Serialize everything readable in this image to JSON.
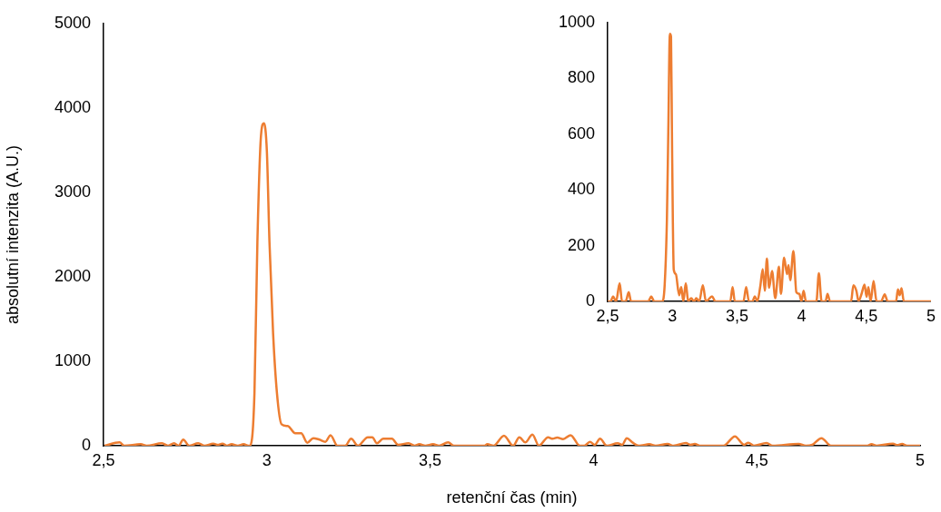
{
  "chart_data": [
    {
      "type": "line",
      "xlabel": "retenční čas (min)",
      "ylabel": "absolutní intenzita (A.U.)",
      "color": "#ed7d31",
      "marker": "none",
      "grid": false,
      "legend": false,
      "xlim": [
        2.5,
        5
      ],
      "xticks": [
        {
          "value": 2.5,
          "label": "2,5"
        },
        3,
        {
          "value": 3.5,
          "label": "3,5"
        },
        4,
        {
          "value": 4.5,
          "label": "4,5"
        },
        5
      ],
      "ylim": [
        0,
        5000
      ],
      "yticks": [
        0,
        1000,
        2000,
        3000,
        4000,
        5000
      ],
      "x": [
        2.503,
        2.549,
        2.563,
        2.614,
        2.632,
        2.679,
        2.697,
        2.716,
        2.73,
        2.744,
        2.762,
        2.79,
        2.809,
        2.836,
        2.85,
        2.864,
        2.878,
        2.892,
        2.911,
        2.929,
        2.943,
        2.948,
        2.962,
        2.971,
        2.982,
        2.991,
        3.0,
        3.008,
        3.019,
        3.031,
        3.045,
        3.064,
        3.087,
        3.105,
        3.124,
        3.142,
        3.161,
        3.179,
        3.195,
        3.216,
        3.24,
        3.258,
        3.279,
        3.309,
        3.323,
        3.337,
        3.356,
        3.383,
        3.402,
        3.434,
        3.452,
        3.467,
        3.485,
        3.509,
        3.527,
        3.555,
        3.573,
        3.666,
        3.675,
        3.694,
        3.726,
        3.754,
        3.773,
        3.791,
        3.813,
        3.833,
        3.861,
        3.875,
        3.889,
        3.907,
        3.93,
        3.958,
        3.972,
        3.989,
        4.004,
        4.02,
        4.041,
        4.074,
        4.088,
        4.102,
        4.12,
        4.139,
        4.171,
        4.19,
        4.227,
        4.245,
        4.283,
        4.297,
        4.31,
        4.328,
        4.398,
        4.433,
        4.461,
        4.474,
        4.491,
        4.53,
        4.548,
        4.628,
        4.65,
        4.67,
        4.698,
        4.727,
        4.839,
        4.851,
        4.867,
        4.917,
        4.93,
        4.945,
        4.96,
        5.0
      ],
      "values": [
        0,
        39,
        0,
        18,
        0,
        29,
        0,
        29,
        0,
        72,
        0,
        29,
        0,
        25,
        11,
        25,
        0,
        18,
        0,
        18,
        0,
        0,
        620,
        2410,
        3670,
        3820,
        3490,
        2410,
        1340,
        620,
        254,
        233,
        147,
        147,
        36,
        90,
        72,
        47,
        125,
        0,
        0,
        82,
        0,
        100,
        100,
        29,
        82,
        82,
        11,
        29,
        0,
        18,
        0,
        18,
        0,
        39,
        0,
        0,
        18,
        0,
        118,
        0,
        100,
        39,
        132,
        0,
        100,
        82,
        97,
        79,
        125,
        0,
        0,
        47,
        11,
        82,
        0,
        29,
        11,
        90,
        36,
        0,
        18,
        0,
        21,
        0,
        32,
        11,
        21,
        0,
        0,
        111,
        11,
        36,
        0,
        32,
        0,
        21,
        0,
        11,
        90,
        0,
        0,
        18,
        0,
        25,
        7,
        21,
        0,
        0
      ]
    },
    {
      "type": "line",
      "color": "#ed7d31",
      "marker": "none",
      "grid": false,
      "legend": false,
      "xlim": [
        2.5,
        5
      ],
      "xticks": [
        {
          "value": 2.5,
          "label": "2,5"
        },
        3,
        {
          "value": 3.5,
          "label": "3,5"
        },
        4,
        {
          "value": 4.5,
          "label": "4,5"
        },
        5
      ],
      "ylim": [
        0,
        1000
      ],
      "yticks": [
        0,
        200,
        400,
        600,
        800,
        1000
      ],
      "x": [
        2.5,
        2.523,
        2.542,
        2.565,
        2.593,
        2.611,
        2.639,
        2.663,
        2.681,
        2.814,
        2.837,
        2.86,
        2.923,
        2.941,
        2.958,
        2.969,
        2.981,
        2.99,
        2.997,
        3.004,
        3.011,
        3.027,
        3.053,
        3.069,
        3.085,
        3.104,
        3.123,
        3.146,
        3.169,
        3.185,
        3.208,
        3.236,
        3.26,
        3.308,
        3.332,
        3.448,
        3.466,
        3.483,
        3.55,
        3.571,
        3.592,
        3.62,
        3.638,
        3.657,
        3.68,
        3.699,
        3.715,
        3.731,
        3.748,
        3.771,
        3.796,
        3.824,
        3.84,
        3.864,
        3.887,
        3.898,
        3.912,
        3.936,
        3.959,
        3.982,
        3.998,
        4.015,
        4.033,
        4.114,
        4.133,
        4.154,
        4.184,
        4.2,
        4.219,
        4.382,
        4.4,
        4.423,
        4.44,
        4.463,
        4.486,
        4.502,
        4.516,
        4.533,
        4.556,
        4.579,
        4.614,
        4.642,
        4.665,
        4.73,
        4.744,
        4.758,
        4.772,
        4.79,
        5.0
      ],
      "values": [
        0,
        0,
        18,
        0,
        65,
        0,
        0,
        33,
        0,
        0,
        18,
        0,
        0,
        60,
        290,
        610,
        960,
        950,
        610,
        290,
        114,
        98,
        22,
        51,
        0,
        65,
        0,
        11,
        0,
        11,
        0,
        58,
        0,
        18,
        0,
        0,
        51,
        0,
        0,
        51,
        0,
        0,
        18,
        0,
        54,
        116,
        38,
        154,
        49,
        109,
        11,
        125,
        27,
        157,
        98,
        130,
        76,
        181,
        33,
        27,
        0,
        38,
        0,
        0,
        101,
        0,
        0,
        27,
        0,
        0,
        58,
        38,
        0,
        27,
        60,
        16,
        51,
        0,
        73,
        0,
        0,
        25,
        0,
        0,
        43,
        22,
        47,
        0,
        0
      ]
    }
  ]
}
